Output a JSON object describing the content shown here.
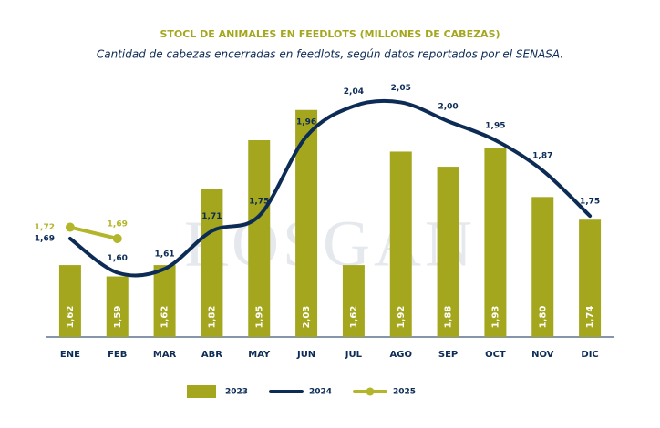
{
  "chart_data": {
    "type": "bar_line",
    "title": "STOCL DE ANIMALES EN FEEDLOTS (MILLONES DE CABEZAS)",
    "subtitle": "Cantidad de cabezas encerradas en feedlots, según datos reportados por el SENASA.",
    "watermark": "ROSGAN",
    "categories": [
      "ENE",
      "FEB",
      "MAR",
      "ABR",
      "MAY",
      "JUN",
      "JUL",
      "AGO",
      "SEP",
      "OCT",
      "NOV",
      "DIC"
    ],
    "ylim": [
      1.43,
      2.08
    ],
    "series": [
      {
        "name": "2023",
        "type": "bar",
        "color": "#a4a71d",
        "values": [
          1.62,
          1.59,
          1.62,
          1.82,
          1.95,
          2.03,
          1.62,
          1.92,
          1.88,
          1.93,
          1.8,
          1.74
        ],
        "value_labels": [
          "1,62",
          "1,59",
          "1,62",
          "1,82",
          "1,95",
          "2,03",
          "1,62",
          "1,92",
          "1,88",
          "1,93",
          "1,80",
          "1,74"
        ]
      },
      {
        "name": "2024",
        "type": "line",
        "color": "#0c2b55",
        "values": [
          1.69,
          1.6,
          1.61,
          1.71,
          1.75,
          1.96,
          2.04,
          2.05,
          2.0,
          1.95,
          1.87,
          1.75
        ],
        "value_labels": [
          "1,69",
          "1,60",
          "1,61",
          "1,71",
          "1,75",
          "1,96",
          "2,04",
          "2,05",
          "2,00",
          "1,95",
          "1,87",
          "1,75"
        ]
      },
      {
        "name": "2025",
        "type": "line_markers",
        "color": "#b3b62a",
        "values": [
          1.72,
          1.69,
          null,
          null,
          null,
          null,
          null,
          null,
          null,
          null,
          null,
          null
        ],
        "value_labels": [
          "1,72",
          "1,69",
          null,
          null,
          null,
          null,
          null,
          null,
          null,
          null,
          null,
          null
        ]
      }
    ]
  }
}
